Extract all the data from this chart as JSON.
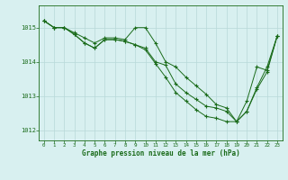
{
  "line1": {
    "x": [
      0,
      1,
      2,
      3,
      4,
      5,
      6,
      7,
      8,
      9,
      10,
      11,
      12,
      13,
      14,
      15,
      16,
      17,
      18,
      19,
      20,
      21,
      22,
      23
    ],
    "y": [
      1015.2,
      1015.0,
      1015.0,
      1014.85,
      1014.7,
      1014.55,
      1014.7,
      1014.7,
      1014.65,
      1015.0,
      1015.0,
      1014.55,
      1014.0,
      1013.85,
      1013.55,
      1013.3,
      1013.05,
      1012.75,
      1012.65,
      1012.25,
      1012.55,
      1013.25,
      1013.85,
      1014.75
    ]
  },
  "line2": {
    "x": [
      0,
      1,
      2,
      3,
      4,
      5,
      6,
      7,
      8,
      9,
      10,
      11,
      12,
      13,
      14,
      15,
      16,
      17,
      18,
      19,
      20,
      21,
      22,
      23
    ],
    "y": [
      1015.2,
      1015.0,
      1015.0,
      1014.8,
      1014.55,
      1014.4,
      1014.65,
      1014.65,
      1014.6,
      1014.5,
      1014.4,
      1014.0,
      1013.9,
      1013.35,
      1013.1,
      1012.9,
      1012.7,
      1012.65,
      1012.55,
      1012.25,
      1012.85,
      1013.85,
      1013.75,
      1014.75
    ]
  },
  "line3": {
    "x": [
      0,
      1,
      2,
      3,
      4,
      5,
      6,
      7,
      8,
      9,
      10,
      11,
      12,
      13,
      14,
      15,
      16,
      17,
      18,
      19,
      20,
      21,
      22,
      23
    ],
    "y": [
      1015.2,
      1015.0,
      1015.0,
      1014.8,
      1014.55,
      1014.4,
      1014.65,
      1014.65,
      1014.6,
      1014.5,
      1014.35,
      1013.95,
      1013.55,
      1013.1,
      1012.85,
      1012.6,
      1012.4,
      1012.35,
      1012.25,
      1012.25,
      1012.55,
      1013.2,
      1013.7,
      1014.75
    ]
  },
  "line_color": "#1a6b1a",
  "bg_color": "#d8f0f0",
  "grid_color": "#b8d8d8",
  "xlabel": "Graphe pression niveau de la mer (hPa)",
  "xlabel_color": "#1a6b1a",
  "tick_color": "#1a6b1a",
  "yticks": [
    1012,
    1013,
    1014,
    1015
  ],
  "xticks": [
    0,
    1,
    2,
    3,
    4,
    5,
    6,
    7,
    8,
    9,
    10,
    11,
    12,
    13,
    14,
    15,
    16,
    17,
    18,
    19,
    20,
    21,
    22,
    23
  ],
  "ylim": [
    1011.7,
    1015.65
  ],
  "xlim": [
    -0.5,
    23.5
  ]
}
